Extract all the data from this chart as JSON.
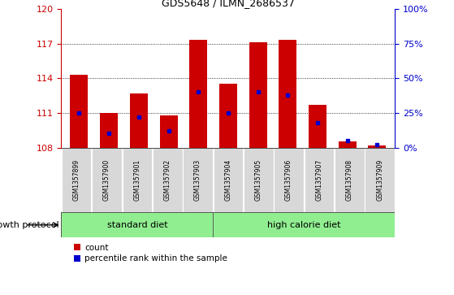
{
  "title": "GDS5648 / ILMN_2686537",
  "samples": [
    "GSM1357899",
    "GSM1357900",
    "GSM1357901",
    "GSM1357902",
    "GSM1357903",
    "GSM1357904",
    "GSM1357905",
    "GSM1357906",
    "GSM1357907",
    "GSM1357908",
    "GSM1357909"
  ],
  "count_values": [
    114.3,
    111.0,
    112.7,
    110.8,
    117.3,
    113.5,
    117.1,
    117.3,
    111.7,
    108.5,
    108.2
  ],
  "percentile_values": [
    25,
    10,
    22,
    12,
    40,
    25,
    40,
    38,
    18,
    5,
    2
  ],
  "ylim_left": [
    108,
    120
  ],
  "ylim_right": [
    0,
    100
  ],
  "yticks_left": [
    108,
    111,
    114,
    117,
    120
  ],
  "yticks_right": [
    0,
    25,
    50,
    75,
    100
  ],
  "groups": [
    {
      "label": "standard diet",
      "start": 0,
      "end": 4
    },
    {
      "label": "high calorie diet",
      "start": 5,
      "end": 10
    }
  ],
  "group_label": "growth protocol",
  "bar_color": "#cc0000",
  "percentile_color": "#0000cc",
  "tick_bg_color": "#d8d8d8",
  "group_bg_color": "#90ee90",
  "grid_color": "#000000",
  "bar_width": 0.6,
  "legend_labels": [
    "count",
    "percentile rank within the sample"
  ]
}
